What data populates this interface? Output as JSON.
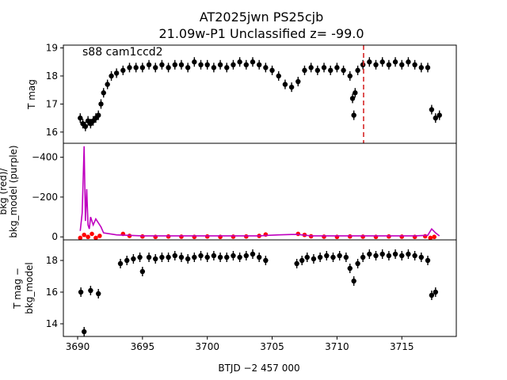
{
  "title_line1": "AT2025jwn  PS25cjb",
  "title_line2": "21.09w-P1 Unclassified z= -99.0",
  "chart_data": [
    {
      "type": "scatter",
      "panel": "top",
      "ylabel": "T mag",
      "annotation": "s88 cam1ccd2",
      "ylim": [
        19.1,
        15.6
      ],
      "yticks": [
        16,
        17,
        18,
        19
      ],
      "xlim": [
        3688.9,
        3719.2
      ],
      "marker_line_x": 3712.05,
      "marker_line_color": "#d62728",
      "grid": false,
      "series": [
        {
          "color": "#000000",
          "x": [
            3690.2,
            3690.4,
            3690.6,
            3690.8,
            3691.0,
            3691.2,
            3691.4,
            3691.6,
            3691.8,
            3692.0,
            3692.3,
            3692.6,
            3693.0,
            3693.5,
            3694.0,
            3694.5,
            3695.0,
            3695.5,
            3696.0,
            3696.5,
            3697.0,
            3697.5,
            3698.0,
            3698.5,
            3699.0,
            3699.5,
            3700.0,
            3700.5,
            3701.0,
            3701.5,
            3702.0,
            3702.5,
            3703.0,
            3703.5,
            3704.0,
            3704.5,
            3705.0,
            3705.5,
            3706.0,
            3706.5,
            3707.0,
            3707.5,
            3708.0,
            3708.5,
            3709.0,
            3709.5,
            3710.0,
            3710.5,
            3711.0,
            3711.2,
            3711.3,
            3711.4,
            3711.6,
            3712.0,
            3712.5,
            3713.0,
            3713.5,
            3714.0,
            3714.5,
            3715.0,
            3715.5,
            3716.0,
            3716.5,
            3717.0,
            3717.3,
            3717.6,
            3717.9
          ],
          "y": [
            16.5,
            16.3,
            16.2,
            16.4,
            16.3,
            16.4,
            16.5,
            16.6,
            17.0,
            17.4,
            17.7,
            18.0,
            18.1,
            18.2,
            18.3,
            18.3,
            18.3,
            18.4,
            18.3,
            18.4,
            18.3,
            18.4,
            18.4,
            18.3,
            18.5,
            18.4,
            18.4,
            18.3,
            18.4,
            18.3,
            18.4,
            18.5,
            18.4,
            18.5,
            18.4,
            18.3,
            18.2,
            18.0,
            17.7,
            17.6,
            17.8,
            18.2,
            18.3,
            18.2,
            18.3,
            18.2,
            18.3,
            18.2,
            18.0,
            17.2,
            16.6,
            17.4,
            18.2,
            18.4,
            18.5,
            18.4,
            18.5,
            18.4,
            18.5,
            18.4,
            18.5,
            18.4,
            18.3,
            18.3,
            16.8,
            16.5,
            16.6
          ]
        }
      ]
    },
    {
      "type": "scatter",
      "panel": "middle",
      "ylabel_line1": "bkg (red)/",
      "ylabel_line2": "bkg_model (purple)",
      "ylim": [
        -470,
        15
      ],
      "yticks": [
        0,
        -200,
        -400
      ],
      "xlim": [
        3688.9,
        3719.2
      ],
      "grid": false,
      "series": [
        {
          "name": "bkg",
          "color": "#ff0000",
          "x": [
            3690.2,
            3690.5,
            3690.8,
            3691.1,
            3691.4,
            3691.7,
            3693.5,
            3694.0,
            3695.0,
            3696.0,
            3697.0,
            3698.0,
            3699.0,
            3700.0,
            3701.0,
            3702.0,
            3703.0,
            3704.0,
            3704.5,
            3707.0,
            3707.5,
            3708.0,
            3709.0,
            3710.0,
            3711.0,
            3712.0,
            3713.0,
            3714.0,
            3715.0,
            3716.0,
            3716.8,
            3717.2,
            3717.5
          ],
          "y": [
            5,
            -10,
            0,
            -15,
            5,
            -5,
            -15,
            -5,
            -2,
            0,
            -2,
            -1,
            0,
            -2,
            0,
            -1,
            -2,
            -5,
            -12,
            -15,
            -10,
            -3,
            -1,
            0,
            -2,
            -1,
            0,
            -2,
            -1,
            0,
            -3,
            5,
            0
          ]
        },
        {
          "name": "bkg_model",
          "color": "#bf00bf",
          "x": [
            3690.2,
            3690.35,
            3690.5,
            3690.6,
            3690.7,
            3690.8,
            3690.9,
            3691.0,
            3691.2,
            3691.4,
            3691.6,
            3691.8,
            3692.0,
            3693.0,
            3695.0,
            3700.0,
            3704.0,
            3704.8,
            3705.5,
            3706.5,
            3707.0,
            3708.0,
            3712.0,
            3716.0,
            3717.0,
            3717.3,
            3717.6,
            3717.9
          ],
          "y": [
            -30,
            -120,
            -455,
            -80,
            -240,
            -60,
            -40,
            -100,
            -60,
            -90,
            -70,
            -50,
            -20,
            -10,
            -5,
            -5,
            -5,
            -8,
            -10,
            -12,
            -12,
            -5,
            -5,
            -5,
            -8,
            -40,
            -20,
            -5
          ]
        }
      ]
    },
    {
      "type": "scatter",
      "panel": "bottom",
      "ylabel_line1": "T mag −",
      "ylabel_line2": "bkg_model",
      "xlabel": "BTJD −2 457 000",
      "ylim": [
        19.3,
        13.2
      ],
      "yticks": [
        14,
        16,
        18
      ],
      "xlim": [
        3688.9,
        3719.2
      ],
      "xticks": [
        3690,
        3695,
        3700,
        3705,
        3710,
        3715
      ],
      "grid": false,
      "series": [
        {
          "color": "#000000",
          "x": [
            3690.25,
            3690.5,
            3691.0,
            3691.6,
            3693.3,
            3693.8,
            3694.3,
            3694.8,
            3695.0,
            3695.5,
            3696.0,
            3696.5,
            3697.0,
            3697.5,
            3698.0,
            3698.5,
            3699.0,
            3699.5,
            3700.0,
            3700.5,
            3701.0,
            3701.5,
            3702.0,
            3702.5,
            3703.0,
            3703.5,
            3704.0,
            3704.5,
            3706.9,
            3707.3,
            3707.7,
            3708.2,
            3708.7,
            3709.2,
            3709.7,
            3710.2,
            3710.7,
            3711.0,
            3711.3,
            3711.6,
            3712.0,
            3712.5,
            3713.0,
            3713.5,
            3714.0,
            3714.5,
            3715.0,
            3715.5,
            3716.0,
            3716.5,
            3717.0,
            3717.3,
            3717.6
          ],
          "y": [
            16.0,
            13.5,
            16.1,
            15.9,
            17.8,
            18.0,
            18.1,
            18.2,
            17.3,
            18.2,
            18.1,
            18.2,
            18.2,
            18.3,
            18.2,
            18.1,
            18.2,
            18.3,
            18.2,
            18.3,
            18.2,
            18.2,
            18.3,
            18.2,
            18.3,
            18.4,
            18.2,
            18.0,
            17.8,
            18.0,
            18.2,
            18.1,
            18.2,
            18.3,
            18.2,
            18.3,
            18.2,
            17.5,
            16.7,
            17.8,
            18.2,
            18.4,
            18.3,
            18.4,
            18.3,
            18.4,
            18.3,
            18.4,
            18.3,
            18.2,
            18.0,
            15.8,
            16.0
          ]
        }
      ]
    }
  ]
}
